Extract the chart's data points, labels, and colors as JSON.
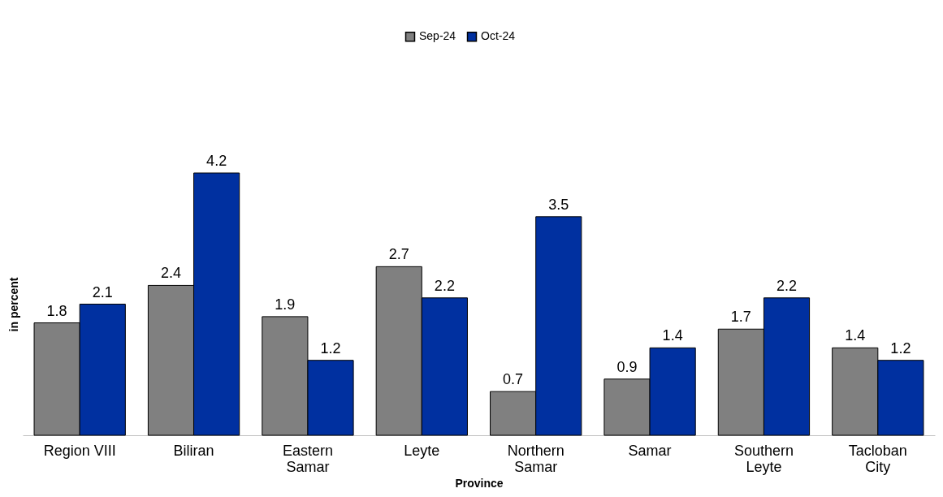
{
  "chart_data": {
    "type": "bar",
    "xlabel": "Province",
    "ylabel": "in percent",
    "categories": [
      "Region VIII",
      "Biliran",
      "Eastern Samar",
      "Leyte",
      "Northern Samar",
      "Samar",
      "Southern Leyte",
      "Tacloban City"
    ],
    "series": [
      {
        "name": "Sep-24",
        "color": "#808080",
        "values": [
          1.8,
          2.4,
          1.9,
          2.7,
          0.7,
          0.9,
          1.7,
          1.4
        ]
      },
      {
        "name": "Oct-24",
        "color": "#0030a0",
        "values": [
          2.1,
          4.2,
          1.2,
          2.2,
          3.5,
          1.4,
          2.2,
          1.2
        ]
      }
    ],
    "data_labels": true,
    "legend": "top",
    "grid": false,
    "tick_labels": "x"
  }
}
